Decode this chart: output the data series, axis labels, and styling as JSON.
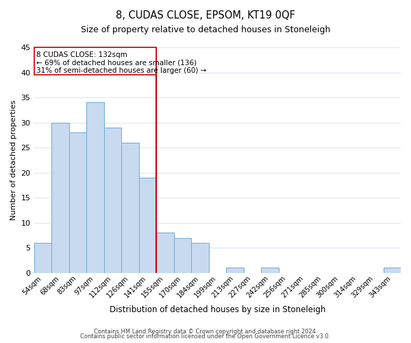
{
  "title1": "8, CUDAS CLOSE, EPSOM, KT19 0QF",
  "title2": "Size of property relative to detached houses in Stoneleigh",
  "xlabel": "Distribution of detached houses by size in Stoneleigh",
  "ylabel": "Number of detached properties",
  "bar_labels": [
    "54sqm",
    "68sqm",
    "83sqm",
    "97sqm",
    "112sqm",
    "126sqm",
    "141sqm",
    "155sqm",
    "170sqm",
    "184sqm",
    "199sqm",
    "213sqm",
    "227sqm",
    "242sqm",
    "256sqm",
    "271sqm",
    "285sqm",
    "300sqm",
    "314sqm",
    "329sqm",
    "343sqm"
  ],
  "bar_values": [
    6,
    30,
    28,
    34,
    29,
    26,
    19,
    8,
    7,
    6,
    0,
    1,
    0,
    1,
    0,
    0,
    0,
    0,
    0,
    0,
    1
  ],
  "bar_color": "#c8daf0",
  "bar_edge_color": "#6fa8d0",
  "vline_x_idx": 6,
  "vline_color": "#cc0000",
  "annotation_title": "8 CUDAS CLOSE: 132sqm",
  "annotation_line1": "← 69% of detached houses are smaller (136)",
  "annotation_line2": "31% of semi-detached houses are larger (60) →",
  "annotation_box_edge": "#cc0000",
  "ylim": [
    0,
    45
  ],
  "yticks": [
    0,
    5,
    10,
    15,
    20,
    25,
    30,
    35,
    40,
    45
  ],
  "footer1": "Contains HM Land Registry data © Crown copyright and database right 2024.",
  "footer2": "Contains public sector information licensed under the Open Government Licence v3.0.",
  "bg_color": "#ffffff",
  "grid_color": "#dce8f5"
}
